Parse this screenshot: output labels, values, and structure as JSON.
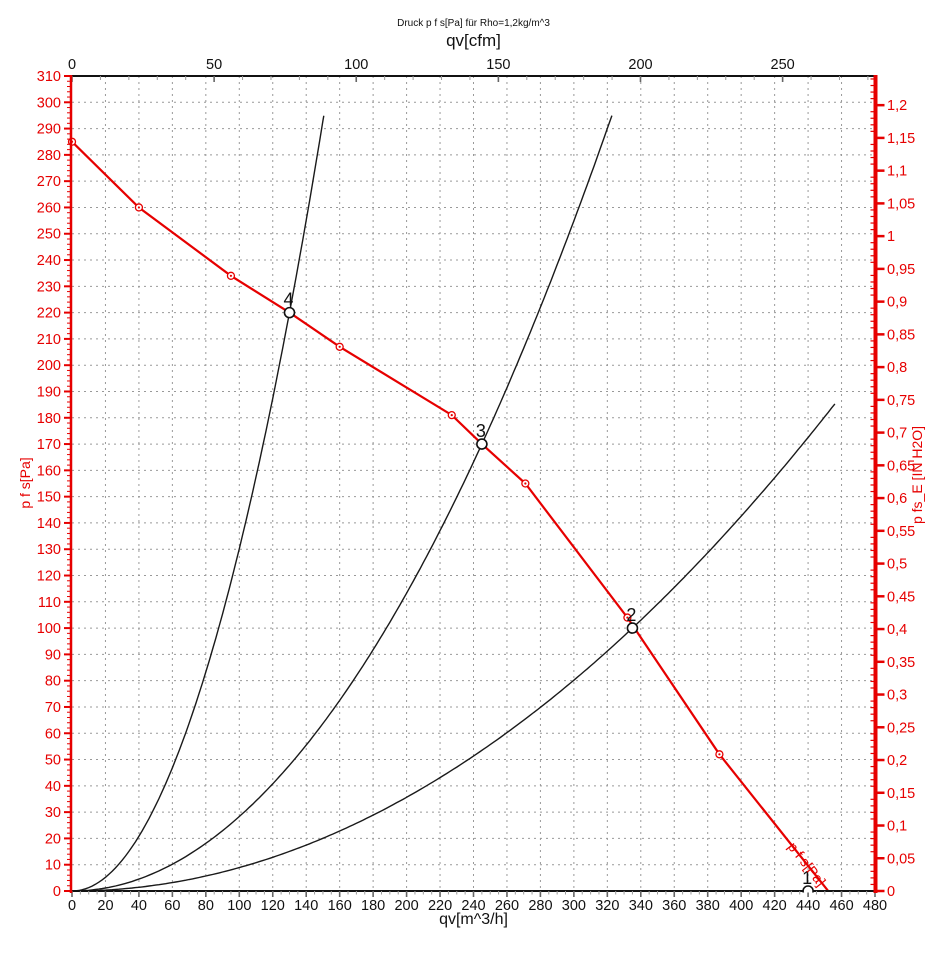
{
  "colors": {
    "accent_red": "#e60000",
    "curve_black": "#1a1a1a",
    "axis_black": "#111111",
    "grid_gray": "#999999",
    "minor_tick_gray": "#999999",
    "major_tick_gray": "#666666",
    "background": "#ffffff"
  },
  "chart_data": {
    "type": "line",
    "title": "Druck p f s[Pa] für Rho=1,2kg/m^3",
    "grid": "dashed, vertical every 20 m^3/h, horizontal every 10 Pa",
    "legend_position": "none",
    "axes": {
      "bottom": {
        "label": "qv[m^3/h]",
        "min": 0,
        "max": 480,
        "major_step": 20,
        "minor_step": 5,
        "ticks": [
          0,
          20,
          40,
          60,
          80,
          100,
          120,
          140,
          160,
          180,
          200,
          220,
          240,
          260,
          280,
          300,
          320,
          340,
          360,
          380,
          400,
          420,
          440,
          460,
          480
        ]
      },
      "top": {
        "label": "qv[cfm]",
        "min": 0,
        "max": 282.5,
        "major_step": 50,
        "minor_step": 10,
        "ticks": [
          0,
          50,
          100,
          150,
          200,
          250
        ]
      },
      "left": {
        "label": "p f s[Pa]",
        "min": 0,
        "max": 310,
        "major_step": 10,
        "minor_step": 2,
        "ticks": [
          0,
          10,
          20,
          30,
          40,
          50,
          60,
          70,
          80,
          90,
          100,
          110,
          120,
          130,
          140,
          150,
          160,
          170,
          180,
          190,
          200,
          210,
          220,
          230,
          240,
          250,
          260,
          270,
          280,
          290,
          300,
          310
        ]
      },
      "right": {
        "label": "p fs_E [IN H2O]",
        "min": 0,
        "max": 1.2445,
        "major_step": 0.05,
        "minor_step": 0.01,
        "pa_per_unit": 249.089,
        "tick_labels": [
          "0",
          "0,05",
          "0,1",
          "0,15",
          "0,2",
          "0,25",
          "0,3",
          "0,35",
          "0,4",
          "0,45",
          "0,5",
          "0,55",
          "0,6",
          "0,65",
          "0,7",
          "0,75",
          "0,8",
          "0,85",
          "0,9",
          "0,95",
          "1",
          "1,05",
          "1,1",
          "1,15",
          "1,2"
        ]
      }
    },
    "fan_curve": {
      "label": "p f s[Pa]",
      "points_qv_pa": [
        [
          0,
          285
        ],
        [
          40,
          260
        ],
        [
          95,
          234
        ],
        [
          130,
          220
        ],
        [
          160,
          207
        ],
        [
          227,
          181
        ],
        [
          245,
          170
        ],
        [
          271,
          155
        ],
        [
          332,
          104
        ],
        [
          387,
          52
        ],
        [
          452,
          0
        ]
      ],
      "marker_points_qv_pa": [
        [
          0,
          285
        ],
        [
          40,
          260
        ],
        [
          95,
          234
        ],
        [
          160,
          207
        ],
        [
          227,
          181
        ],
        [
          271,
          155
        ],
        [
          332,
          104
        ],
        [
          387,
          52
        ]
      ]
    },
    "system_curves": [
      {
        "through_point": "4",
        "k": 0.013018,
        "qv_end": 150.5
      },
      {
        "through_point": "3",
        "k": 0.0028322,
        "qv_end": 322.7
      },
      {
        "through_point": "2",
        "k": 0.00089107,
        "qv_end": 456
      }
    ],
    "operating_points": [
      {
        "label": "1",
        "qv": 440,
        "p": 0
      },
      {
        "label": "2",
        "qv": 335,
        "p": 100
      },
      {
        "label": "3",
        "qv": 245,
        "p": 170
      },
      {
        "label": "4",
        "qv": 130,
        "p": 220
      }
    ]
  }
}
